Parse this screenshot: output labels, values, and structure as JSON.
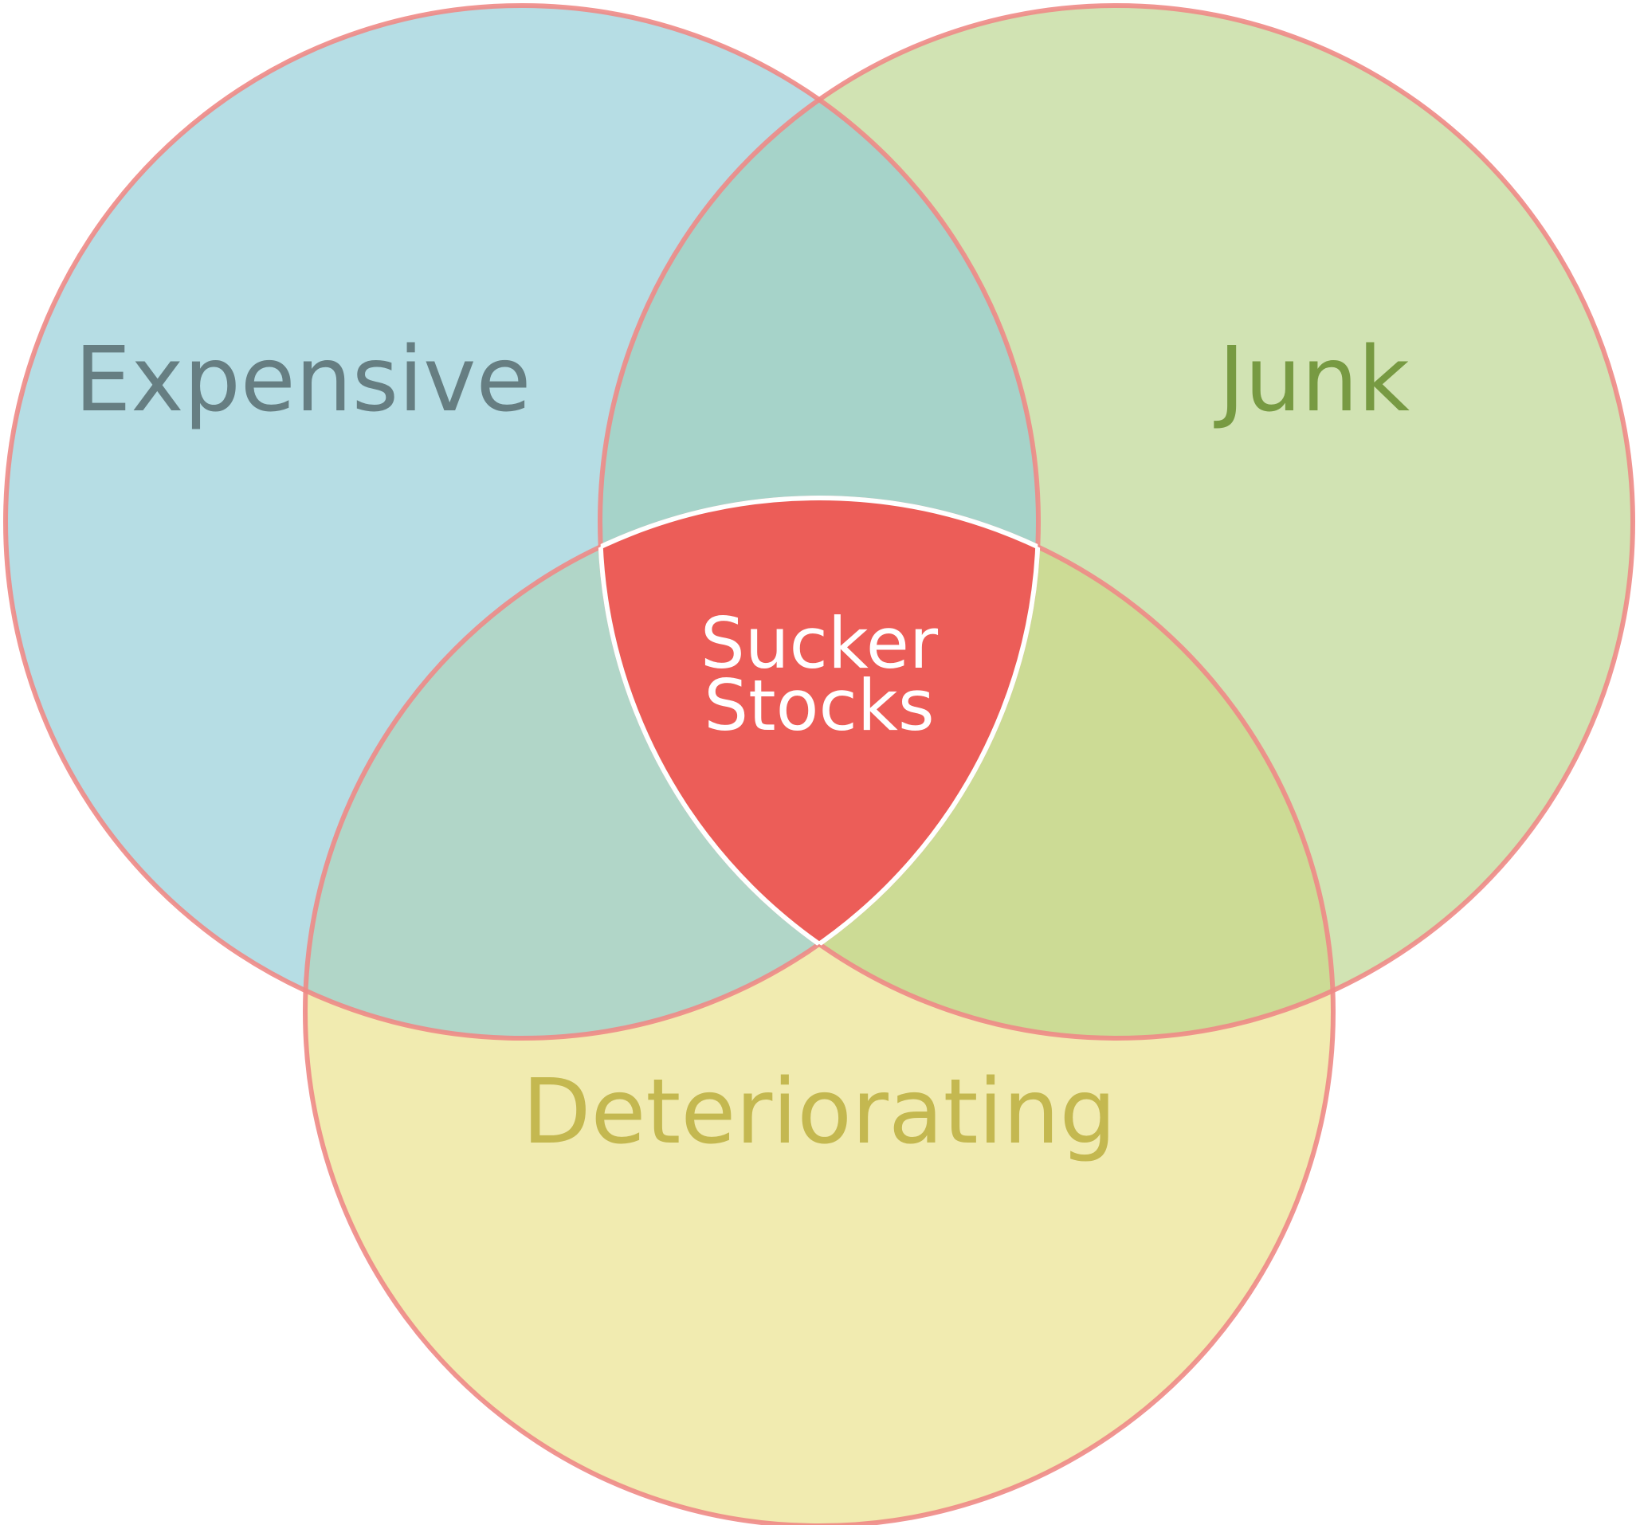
{
  "sets": [
    {
      "label": "Expensive"
    },
    {
      "label": "Junk"
    },
    {
      "label": "Deteriorating"
    }
  ],
  "intersection": {
    "lines": [
      "Sucker",
      "Stocks"
    ]
  }
}
